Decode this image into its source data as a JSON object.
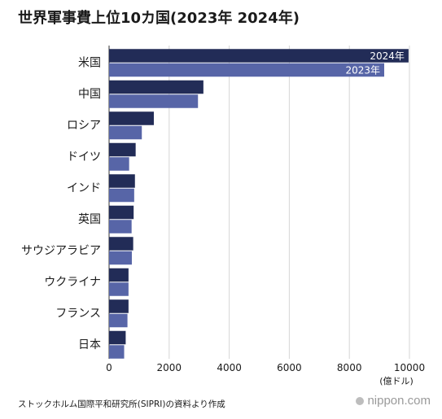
{
  "title": "世界軍事費上位10カ国(2023年 2024年)",
  "source": "ストックホルム国際平和研究所(SIPRI)の資料より作成",
  "brand": "nippon.com",
  "colors": {
    "y2024": "#222c57",
    "y2023": "#5765a7",
    "grid": "#d6d6d6",
    "axis": "#333333"
  },
  "chart_data": {
    "type": "bar",
    "orientation": "horizontal",
    "categories": [
      "米国",
      "中国",
      "ロシア",
      "ドイツ",
      "インド",
      "英国",
      "サウジアラビア",
      "ウクライナ",
      "フランス",
      "日本"
    ],
    "series": [
      {
        "name": "2024年",
        "values": [
          9970,
          3140,
          1490,
          885,
          861,
          818,
          803,
          647,
          647,
          553
        ]
      },
      {
        "name": "2023年",
        "values": [
          9160,
          2960,
          1090,
          668,
          836,
          750,
          758,
          647,
          612,
          502
        ]
      }
    ],
    "xlim": [
      0,
      10000
    ],
    "xticks": [
      0,
      2000,
      4000,
      6000,
      8000,
      10000
    ],
    "xunit": "(億ドル)",
    "grid": true
  }
}
